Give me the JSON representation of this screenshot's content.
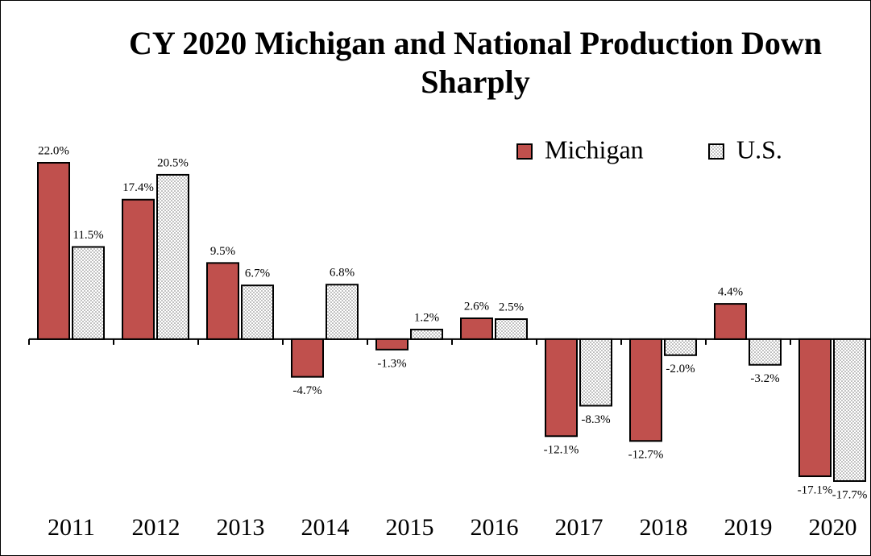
{
  "chart_data": {
    "type": "bar",
    "title": "CY 2020 Michigan and National Production Down Sharply",
    "categories": [
      "2011",
      "2012",
      "2013",
      "2014",
      "2015",
      "2016",
      "2017",
      "2018",
      "2019",
      "2020"
    ],
    "series": [
      {
        "name": "Michigan",
        "color": "#c0504d",
        "values": [
          22.0,
          17.4,
          9.5,
          -4.7,
          -1.3,
          2.6,
          -12.1,
          -12.7,
          4.4,
          -17.1
        ],
        "value_labels": [
          "22.0%",
          "17.4%",
          "9.5%",
          "-4.7%",
          "-1.3%",
          "2.6%",
          "-12.1%",
          "-12.7%",
          "4.4%",
          "-17.1%"
        ]
      },
      {
        "name": "U.S.",
        "color": "#ffffff",
        "pattern": "dots",
        "values": [
          11.5,
          20.5,
          6.7,
          6.8,
          1.2,
          2.5,
          -8.3,
          -2.0,
          -3.2,
          -17.7
        ],
        "value_labels": [
          "11.5%",
          "20.5%",
          "6.7%",
          "6.8%",
          "1.2%",
          "2.5%",
          "-8.3%",
          "-2.0%",
          "-3.2%",
          "-17.7%"
        ]
      }
    ],
    "legend": "top-right"
  }
}
